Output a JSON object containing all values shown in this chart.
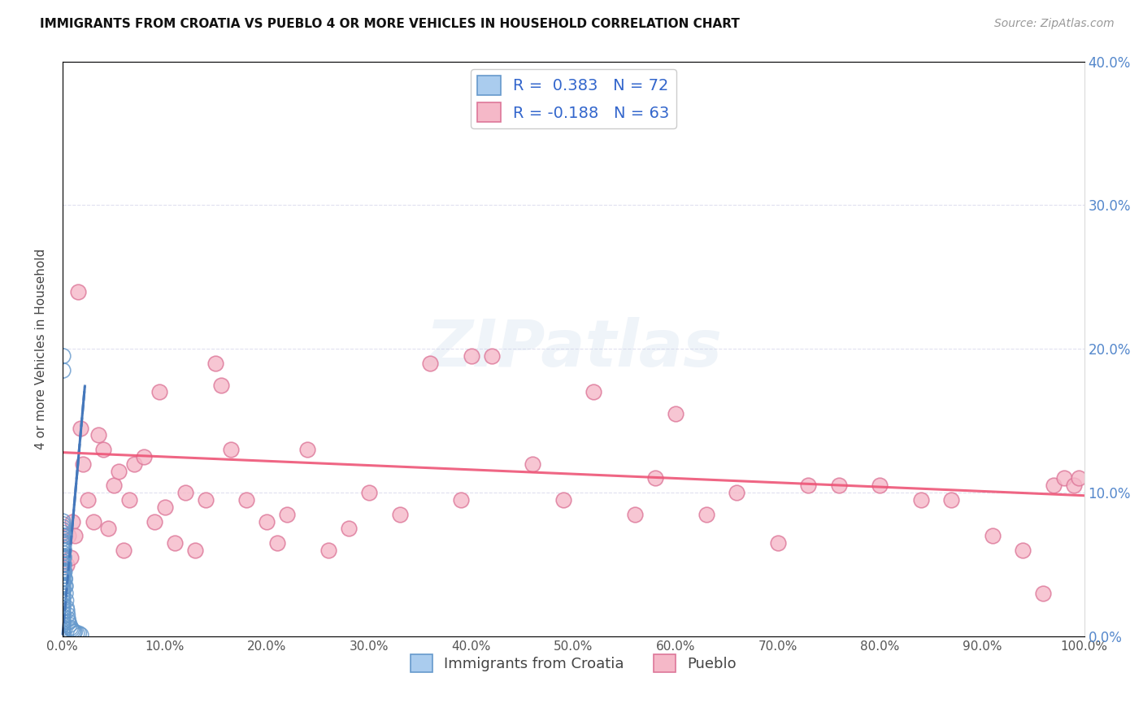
{
  "title": "IMMIGRANTS FROM CROATIA VS PUEBLO 4 OR MORE VEHICLES IN HOUSEHOLD CORRELATION CHART",
  "source": "Source: ZipAtlas.com",
  "ylabel": "4 or more Vehicles in Household",
  "xmin": 0.0,
  "xmax": 1.0,
  "ymin": 0.0,
  "ymax": 0.4,
  "xticks": [
    0.0,
    0.1,
    0.2,
    0.3,
    0.4,
    0.5,
    0.6,
    0.7,
    0.8,
    0.9,
    1.0
  ],
  "yticks": [
    0.0,
    0.1,
    0.2,
    0.3,
    0.4
  ],
  "xtick_labels": [
    "0.0%",
    "10.0%",
    "20.0%",
    "30.0%",
    "40.0%",
    "50.0%",
    "60.0%",
    "70.0%",
    "80.0%",
    "90.0%",
    "100.0%"
  ],
  "ytick_labels_right": [
    "0.0%",
    "10.0%",
    "20.0%",
    "30.0%",
    "40.0%"
  ],
  "blue_fill": "#aaccee",
  "blue_edge": "#6699cc",
  "pink_fill": "#f5b8c8",
  "pink_edge": "#dd7799",
  "blue_line_color": "#4477bb",
  "pink_line_color": "#ee5577",
  "legend_R_blue": "0.383",
  "legend_N_blue": "72",
  "legend_R_pink": "-0.188",
  "legend_N_pink": "63",
  "legend_label_blue": "Immigrants from Croatia",
  "legend_label_pink": "Pueblo",
  "watermark": "ZIPatlas",
  "blue_x": [
    0.0005,
    0.0005,
    0.0005,
    0.0005,
    0.0005,
    0.0005,
    0.0005,
    0.0005,
    0.0005,
    0.0005,
    0.0005,
    0.0005,
    0.0005,
    0.0005,
    0.0005,
    0.0005,
    0.0005,
    0.0005,
    0.0005,
    0.0005,
    0.0005,
    0.0005,
    0.0005,
    0.0005,
    0.0005,
    0.0005,
    0.0005,
    0.0005,
    0.0005,
    0.0005,
    0.0005,
    0.0005,
    0.0005,
    0.0005,
    0.0005,
    0.0005,
    0.0005,
    0.0005,
    0.0005,
    0.0005,
    0.001,
    0.001,
    0.001,
    0.001,
    0.001,
    0.0015,
    0.0015,
    0.0015,
    0.0015,
    0.002,
    0.002,
    0.0025,
    0.0025,
    0.003,
    0.003,
    0.0035,
    0.004,
    0.0045,
    0.005,
    0.0055,
    0.006,
    0.007,
    0.008,
    0.009,
    0.01,
    0.011,
    0.012,
    0.014,
    0.016,
    0.018,
    0.0005,
    0.0005
  ],
  "blue_y": [
    0.002,
    0.004,
    0.006,
    0.008,
    0.01,
    0.012,
    0.014,
    0.016,
    0.018,
    0.02,
    0.022,
    0.024,
    0.026,
    0.028,
    0.03,
    0.032,
    0.034,
    0.036,
    0.038,
    0.04,
    0.042,
    0.044,
    0.046,
    0.048,
    0.05,
    0.052,
    0.054,
    0.056,
    0.058,
    0.06,
    0.062,
    0.064,
    0.066,
    0.068,
    0.07,
    0.072,
    0.074,
    0.076,
    0.078,
    0.08,
    0.05,
    0.055,
    0.06,
    0.065,
    0.07,
    0.045,
    0.05,
    0.055,
    0.06,
    0.04,
    0.045,
    0.035,
    0.04,
    0.03,
    0.035,
    0.025,
    0.02,
    0.018,
    0.015,
    0.012,
    0.01,
    0.008,
    0.006,
    0.005,
    0.004,
    0.003,
    0.003,
    0.002,
    0.002,
    0.001,
    0.185,
    0.195
  ],
  "pink_x": [
    0.004,
    0.006,
    0.008,
    0.01,
    0.012,
    0.015,
    0.018,
    0.02,
    0.025,
    0.03,
    0.035,
    0.04,
    0.045,
    0.05,
    0.055,
    0.06,
    0.065,
    0.07,
    0.08,
    0.09,
    0.095,
    0.1,
    0.11,
    0.12,
    0.13,
    0.14,
    0.155,
    0.165,
    0.18,
    0.2,
    0.21,
    0.22,
    0.24,
    0.26,
    0.28,
    0.3,
    0.33,
    0.36,
    0.39,
    0.42,
    0.46,
    0.49,
    0.52,
    0.56,
    0.6,
    0.63,
    0.66,
    0.7,
    0.73,
    0.76,
    0.8,
    0.84,
    0.87,
    0.91,
    0.94,
    0.96,
    0.97,
    0.98,
    0.99,
    0.995,
    0.15,
    0.4,
    0.58
  ],
  "pink_y": [
    0.05,
    0.07,
    0.055,
    0.08,
    0.07,
    0.24,
    0.145,
    0.12,
    0.095,
    0.08,
    0.14,
    0.13,
    0.075,
    0.105,
    0.115,
    0.06,
    0.095,
    0.12,
    0.125,
    0.08,
    0.17,
    0.09,
    0.065,
    0.1,
    0.06,
    0.095,
    0.175,
    0.13,
    0.095,
    0.08,
    0.065,
    0.085,
    0.13,
    0.06,
    0.075,
    0.1,
    0.085,
    0.19,
    0.095,
    0.195,
    0.12,
    0.095,
    0.17,
    0.085,
    0.155,
    0.085,
    0.1,
    0.065,
    0.105,
    0.105,
    0.105,
    0.095,
    0.095,
    0.07,
    0.06,
    0.03,
    0.105,
    0.11,
    0.105,
    0.11,
    0.19,
    0.195,
    0.11
  ],
  "blue_trend_x0": 0.0,
  "blue_trend_x1": 0.022,
  "blue_trend_y0": 0.0,
  "blue_trend_y1": 0.175,
  "pink_trend_x0": 0.0,
  "pink_trend_x1": 1.0,
  "pink_trend_y0": 0.128,
  "pink_trend_y1": 0.098
}
